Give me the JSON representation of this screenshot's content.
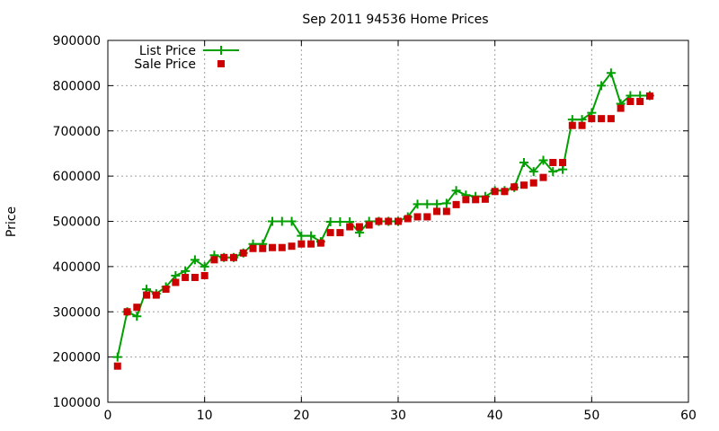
{
  "chart_data": {
    "type": "line",
    "title": "Sep 2011 94536 Home Prices",
    "xlabel": "",
    "ylabel": "Price",
    "xlim": [
      0,
      60
    ],
    "ylim": [
      100000,
      900000
    ],
    "x_ticks": [
      "0",
      "10",
      "20",
      "30",
      "40",
      "50",
      "60"
    ],
    "y_ticks": [
      "100000",
      "200000",
      "300000",
      "400000",
      "500000",
      "600000",
      "700000",
      "800000",
      "900000"
    ],
    "grid": true,
    "legend_position": "top-left",
    "series": [
      {
        "name": "List Price",
        "style": "line-with-plus-markers",
        "color": "#00a000",
        "x": [
          1,
          2,
          3,
          4,
          5,
          6,
          7,
          8,
          9,
          10,
          11,
          12,
          13,
          14,
          15,
          16,
          17,
          18,
          19,
          20,
          21,
          22,
          23,
          24,
          25,
          26,
          27,
          28,
          29,
          30,
          31,
          32,
          33,
          34,
          35,
          36,
          37,
          38,
          39,
          40,
          41,
          42,
          43,
          44,
          45,
          46,
          47,
          48,
          49,
          50,
          51,
          52,
          53,
          54,
          55,
          56
        ],
        "y": [
          200000,
          300000,
          290000,
          350000,
          340000,
          355000,
          380000,
          390000,
          415000,
          400000,
          425000,
          420000,
          420000,
          430000,
          450000,
          450000,
          500000,
          500000,
          500000,
          468000,
          468000,
          455000,
          499000,
          499000,
          499000,
          475000,
          500000,
          500000,
          500000,
          500000,
          510000,
          538000,
          538000,
          538000,
          540000,
          568000,
          558000,
          555000,
          555000,
          568000,
          568000,
          575000,
          630000,
          610000,
          635000,
          610000,
          615000,
          725000,
          725000,
          740000,
          800000,
          828000,
          760000,
          778000,
          778000,
          778000
        ]
      },
      {
        "name": "Sale Price",
        "style": "square-markers",
        "color": "#cc0000",
        "x": [
          1,
          2,
          3,
          4,
          5,
          6,
          7,
          8,
          9,
          10,
          11,
          12,
          13,
          14,
          15,
          16,
          17,
          18,
          19,
          20,
          21,
          22,
          23,
          24,
          25,
          26,
          27,
          28,
          29,
          30,
          31,
          32,
          33,
          34,
          35,
          36,
          37,
          38,
          39,
          40,
          41,
          42,
          43,
          44,
          45,
          46,
          47,
          48,
          49,
          50,
          51,
          52,
          53,
          54,
          55,
          56
        ],
        "y": [
          180000,
          300000,
          310000,
          337000,
          337000,
          350000,
          365000,
          376000,
          376000,
          380000,
          415000,
          420000,
          420000,
          430000,
          440000,
          440000,
          442000,
          442000,
          445000,
          450000,
          450000,
          452000,
          475000,
          475000,
          488000,
          488000,
          492000,
          500000,
          500000,
          500000,
          506000,
          510000,
          510000,
          522000,
          522000,
          537000,
          548000,
          548000,
          549000,
          566000,
          566000,
          576000,
          580000,
          585000,
          597000,
          630000,
          630000,
          712000,
          712000,
          727000,
          727000,
          727000,
          750000,
          765000,
          765000,
          777000
        ]
      }
    ]
  }
}
